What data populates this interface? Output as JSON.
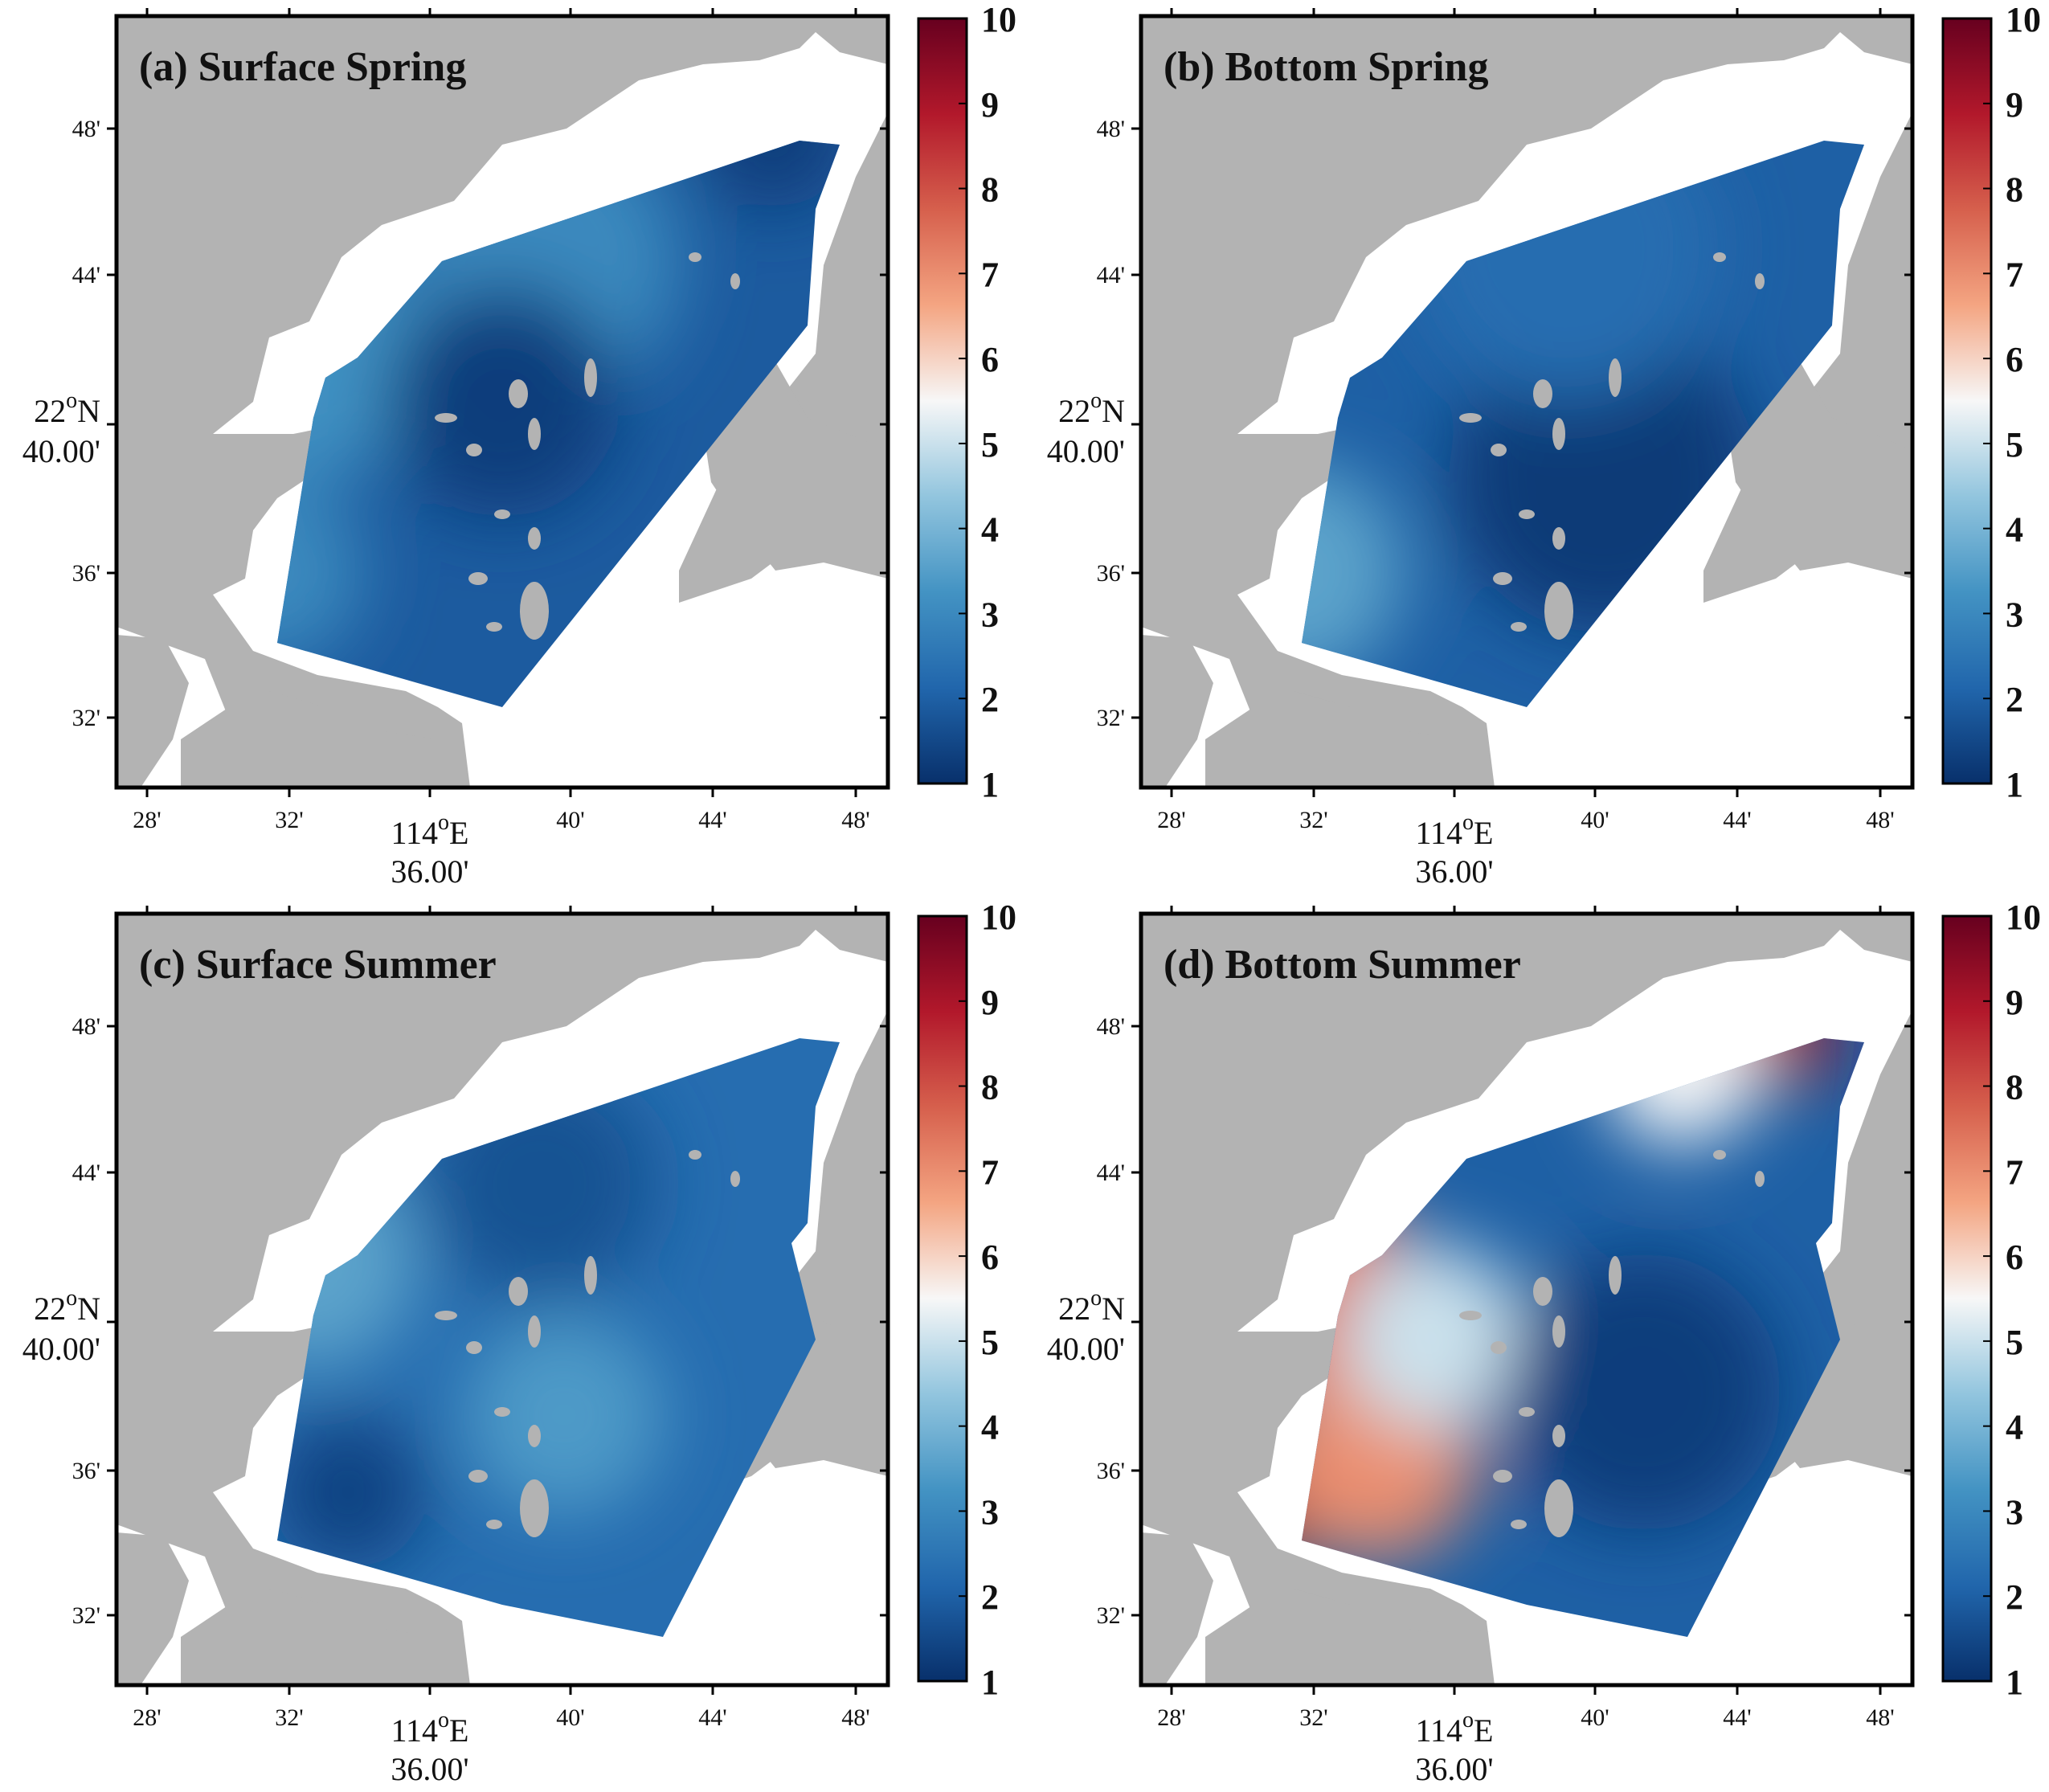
{
  "colors": {
    "land": "#b3b3b3",
    "water": "#ffffff",
    "frame": "#000000",
    "colormap": [
      "#08306b",
      "#2166ac",
      "#4393c3",
      "#92c5de",
      "#f7f7f7",
      "#f4a582",
      "#d6604d",
      "#b2182b",
      "#67001f"
    ]
  },
  "colorbar": {
    "min": 1,
    "max": 10,
    "labels": [
      "10",
      "9",
      "8",
      "7",
      "6",
      "5",
      "4",
      "3",
      "2",
      "1"
    ]
  },
  "axes": {
    "x_ticks": [
      "28'",
      "32'",
      "114°E\n36.00'",
      "40'",
      "44'",
      "48'"
    ],
    "x_main_line1": "114",
    "x_main_sup": "o",
    "x_main_line1_suffix": "E",
    "x_main_line2": "36.00'",
    "y_ticks": [
      "48'",
      "44'",
      "36'",
      "32'"
    ],
    "y_main_line1": "22",
    "y_main_sup": "o",
    "y_main_line1_suffix": "N",
    "y_main_line2": "40.00'"
  },
  "panels": [
    {
      "id": "a",
      "title": "(a) Surface Spring",
      "field": {
        "base": 1.9,
        "hotspots": [
          {
            "u": 0.55,
            "v": 0.32,
            "val": 3.0,
            "r": 0.18
          },
          {
            "u": 0.25,
            "v": 0.45,
            "val": 3.2,
            "r": 0.15
          },
          {
            "u": 0.2,
            "v": 0.72,
            "val": 3.0,
            "r": 0.12
          },
          {
            "u": 0.5,
            "v": 0.5,
            "val": 1.3,
            "r": 0.15
          },
          {
            "u": 0.85,
            "v": 0.15,
            "val": 1.3,
            "r": 0.1
          }
        ]
      }
    },
    {
      "id": "b",
      "title": "(b) Bottom Spring",
      "field": {
        "base": 2.0,
        "hotspots": [
          {
            "u": 0.2,
            "v": 0.72,
            "val": 3.6,
            "r": 0.14
          },
          {
            "u": 0.6,
            "v": 0.6,
            "val": 1.2,
            "r": 0.2
          },
          {
            "u": 0.55,
            "v": 0.3,
            "val": 2.3,
            "r": 0.2
          }
        ]
      }
    },
    {
      "id": "c",
      "title": "(c) Surface Summer",
      "field": {
        "base": 2.3,
        "hotspots": [
          {
            "u": 0.25,
            "v": 0.45,
            "val": 3.6,
            "r": 0.14
          },
          {
            "u": 0.58,
            "v": 0.65,
            "val": 3.4,
            "r": 0.13
          },
          {
            "u": 0.3,
            "v": 0.75,
            "val": 1.4,
            "r": 0.1
          },
          {
            "u": 0.55,
            "v": 0.35,
            "val": 1.7,
            "r": 0.15
          }
        ]
      }
    },
    {
      "id": "d",
      "title": "(d) Bottom Summer",
      "field": {
        "base": 2.0,
        "hotspots": [
          {
            "u": 0.15,
            "v": 0.78,
            "val": 9.5,
            "r": 0.08
          },
          {
            "u": 0.22,
            "v": 0.48,
            "val": 7.5,
            "r": 0.14
          },
          {
            "u": 0.3,
            "v": 0.7,
            "val": 7.0,
            "r": 0.14
          },
          {
            "u": 0.38,
            "v": 0.55,
            "val": 5.0,
            "r": 0.12
          },
          {
            "u": 0.82,
            "v": 0.15,
            "val": 9.0,
            "r": 0.08
          },
          {
            "u": 0.7,
            "v": 0.2,
            "val": 5.5,
            "r": 0.1
          },
          {
            "u": 0.65,
            "v": 0.62,
            "val": 1.3,
            "r": 0.18
          }
        ]
      }
    }
  ]
}
